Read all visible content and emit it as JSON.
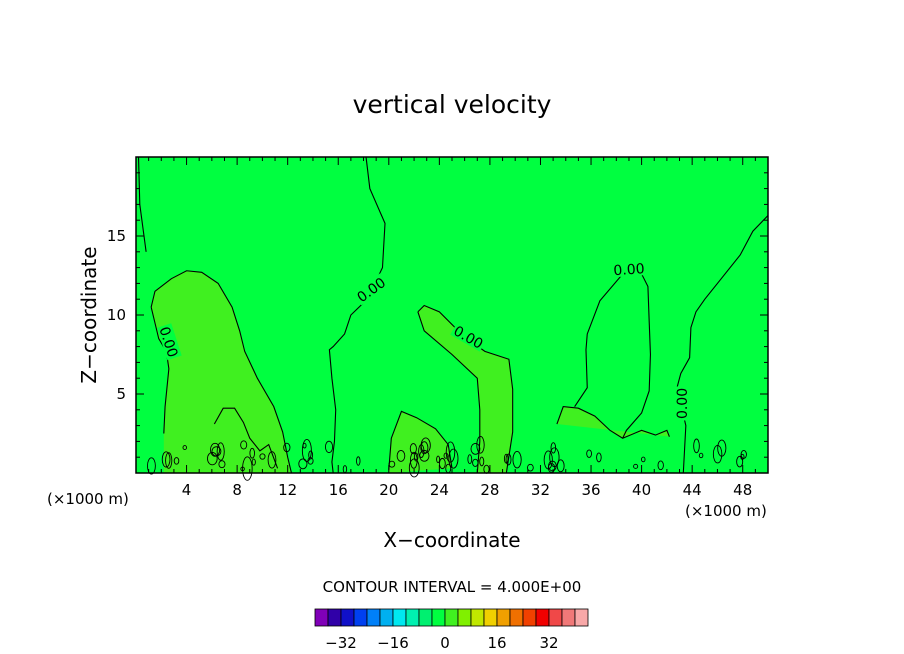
{
  "chart_data": {
    "type": "heatmap",
    "title": "vertical velocity",
    "xlabel": "X−coordinate",
    "ylabel": "Z−coordinate",
    "x_unit_left": "(×1000 m)",
    "x_unit_right": "(×1000 m)",
    "xlim": [
      0,
      50
    ],
    "ylim": [
      0,
      20
    ],
    "xticks": [
      4,
      8,
      12,
      16,
      20,
      24,
      28,
      32,
      36,
      40,
      44,
      48
    ],
    "yticks": [
      5,
      10,
      15
    ],
    "contour_interval_text": "CONTOUR INTERVAL = 4.000E+00",
    "contour_label": "0.00",
    "contour_zero_lines": [
      {
        "points": [
          [
            0.2,
            20
          ],
          [
            0.3,
            17
          ],
          [
            0.8,
            14
          ]
        ]
      },
      {
        "points": [
          [
            18.2,
            20
          ],
          [
            18.5,
            18
          ],
          [
            19.7,
            15.8
          ],
          [
            19.5,
            13
          ],
          [
            18.3,
            11
          ],
          [
            17,
            10
          ],
          [
            16.5,
            8.8
          ],
          [
            15.6,
            8
          ],
          [
            15.3,
            7.8
          ],
          [
            15.5,
            6
          ],
          [
            15.8,
            4
          ],
          [
            15.7,
            2
          ],
          [
            15.5,
            0.7
          ],
          [
            15.6,
            0
          ]
        ]
      },
      {
        "points": [
          [
            1.2,
            10.5
          ],
          [
            1.5,
            11.5
          ],
          [
            2.8,
            12.3
          ],
          [
            4,
            12.8
          ],
          [
            5.2,
            12.7
          ],
          [
            6.5,
            12
          ],
          [
            7.6,
            10.5
          ],
          [
            8,
            9.5
          ],
          [
            8.2,
            9
          ],
          [
            8.6,
            7.7
          ],
          [
            9.6,
            6
          ],
          [
            10.9,
            4.2
          ],
          [
            11.6,
            2.6
          ],
          [
            12,
            1
          ],
          [
            12.3,
            0
          ]
        ]
      },
      {
        "points": [
          [
            1.2,
            10.5
          ],
          [
            1.8,
            8.5
          ],
          [
            2.4,
            7.7
          ],
          [
            2.6,
            6.6
          ],
          [
            2.3,
            4.2
          ],
          [
            2.2,
            2.5
          ]
        ]
      },
      {
        "points": [
          [
            22.3,
            10.2
          ],
          [
            22.8,
            10.6
          ],
          [
            24,
            10.2
          ],
          [
            25,
            9.4
          ],
          [
            26,
            8.6
          ],
          [
            27.6,
            7.7
          ],
          [
            29.5,
            7.2
          ],
          [
            29.8,
            5.3
          ],
          [
            29.8,
            2.6
          ],
          [
            29.3,
            0
          ]
        ]
      },
      {
        "points": [
          [
            22.3,
            10.2
          ],
          [
            22.8,
            9
          ],
          [
            25,
            7.5
          ],
          [
            27,
            6
          ],
          [
            27.2,
            4
          ],
          [
            27.2,
            2
          ],
          [
            27,
            0
          ]
        ]
      },
      {
        "points": [
          [
            33.3,
            3.1
          ],
          [
            33.8,
            4.2
          ],
          [
            35,
            4.1
          ],
          [
            36.3,
            3.6
          ],
          [
            37.5,
            2.7
          ],
          [
            38.5,
            2.2
          ],
          [
            40,
            2.7
          ],
          [
            41.1,
            2.4
          ],
          [
            42,
            2.7
          ],
          [
            42.2,
            2.3
          ]
        ]
      },
      {
        "points": [
          [
            34.7,
            4.2
          ],
          [
            35.7,
            5.4
          ],
          [
            35.6,
            7.8
          ],
          [
            35.7,
            8.8
          ],
          [
            36.7,
            10.9
          ],
          [
            38.4,
            12.5
          ],
          [
            40,
            12.6
          ],
          [
            40.5,
            11.8
          ],
          [
            40.6,
            9.6
          ],
          [
            40.7,
            7.5
          ],
          [
            40.6,
            5.2
          ],
          [
            40,
            3.8
          ],
          [
            38.8,
            2.7
          ],
          [
            38.5,
            2.2
          ]
        ]
      },
      {
        "points": [
          [
            50,
            16.3
          ],
          [
            48.8,
            15.3
          ],
          [
            47.8,
            13.8
          ],
          [
            46.3,
            12.3
          ],
          [
            45,
            11
          ],
          [
            44.3,
            10.2
          ],
          [
            43.9,
            9.2
          ],
          [
            43.8,
            7.3
          ],
          [
            43.1,
            6.3
          ],
          [
            42.8,
            5.4
          ],
          [
            43.5,
            3
          ],
          [
            43.3,
            0
          ]
        ]
      },
      {
        "points": [
          [
            6.2,
            3.1
          ],
          [
            6.9,
            4.1
          ],
          [
            7.8,
            4.1
          ],
          [
            8.5,
            3.2
          ],
          [
            9,
            2.2
          ],
          [
            9.8,
            1.4
          ],
          [
            10.5,
            1.8
          ],
          [
            11.2,
            0.3
          ]
        ]
      },
      {
        "points": [
          [
            20,
            0.2
          ],
          [
            20.2,
            2.2
          ],
          [
            21,
            3.9
          ],
          [
            22.2,
            3.5
          ],
          [
            23.7,
            2.8
          ],
          [
            24.7,
            1.8
          ],
          [
            25,
            0.3
          ]
        ]
      }
    ],
    "contour_label_positions": [
      {
        "x": 18.6,
        "y": 11.6,
        "angle": -36
      },
      {
        "x": 26.3,
        "y": 8.6,
        "angle": 30
      },
      {
        "x": 39,
        "y": 12.9,
        "angle": -4
      },
      {
        "x": 2.6,
        "y": 8.3,
        "angle": 72
      },
      {
        "x": 43.2,
        "y": 4.4,
        "angle": -90
      }
    ],
    "colorbar": {
      "colors": [
        "#8000b8",
        "#3000a8",
        "#1010c8",
        "#0040f0",
        "#0080f8",
        "#00b0f0",
        "#00e8f0",
        "#00f0b0",
        "#00f070",
        "#00ff40",
        "#40f020",
        "#80f000",
        "#c0e800",
        "#f0d000",
        "#f0a000",
        "#f07000",
        "#f04000",
        "#f00000",
        "#f04848",
        "#f07878",
        "#f8a8a8"
      ],
      "tick_labels": [
        "−32",
        "−16",
        "0",
        "16",
        "32"
      ],
      "tick_values": [
        -32,
        -16,
        0,
        16,
        32
      ],
      "vmin": -40,
      "vmax": 44
    },
    "fill_colors": {
      "background": "#00ff40",
      "core": "#40f020"
    },
    "grid": false
  }
}
